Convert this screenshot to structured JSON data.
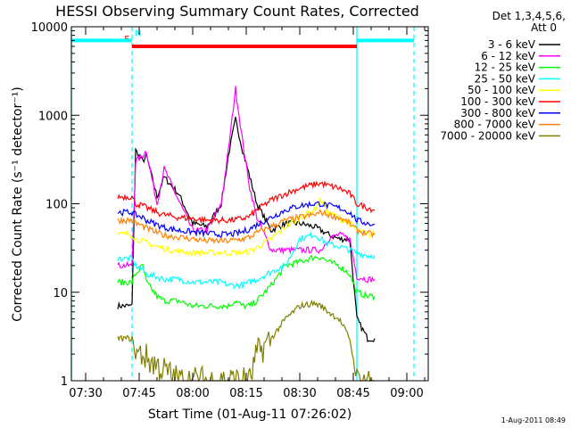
{
  "chart_data": {
    "type": "line",
    "title": "HESSI Observing Summary Count Rates, Corrected",
    "xlabel": "Start Time (01-Aug-11 07:26:02)",
    "ylabel": "Corrected Count Rate (s⁻¹ detector⁻¹)",
    "x_unit": "minutes since 07:26:02",
    "xlim": [
      0,
      100
    ],
    "x_ticks": [
      4,
      19,
      34,
      49,
      64,
      79,
      94
    ],
    "x_tick_labels": [
      "07:30",
      "07:45",
      "08:00",
      "08:15",
      "08:30",
      "08:45",
      "09:00"
    ],
    "y_scale": "log",
    "ylim": [
      1,
      10000
    ],
    "y_ticks": [
      1,
      10,
      100,
      1000,
      10000
    ],
    "y_tick_labels": [
      "1",
      "10",
      "100",
      "1000",
      "10000"
    ],
    "legend_header": [
      "Det 1,3,4,5,6,",
      "Att 0"
    ],
    "legend_position": "right",
    "footer": "1-Aug-2011 08:49",
    "flags": [
      {
        "label": "F",
        "color": "#ff0000",
        "value": 6000,
        "x_start": 17,
        "x_end": 80
      },
      {
        "label": "N",
        "color": "#00ffff",
        "value": 7000,
        "x_start": 0,
        "x_end": 17
      },
      {
        "label": "",
        "color": "#00ffff",
        "value": 7000,
        "x_start": 80,
        "x_end": 96
      }
    ],
    "vlines": [
      {
        "x": 0,
        "color": "#00ffff",
        "style": "solid"
      },
      {
        "x": 17,
        "color": "#00ffff",
        "style": "dashed"
      },
      {
        "x": 80,
        "color": "#00ffff",
        "style": "solid"
      },
      {
        "x": 96,
        "color": "#00ffff",
        "style": "dashed"
      }
    ],
    "x_samples": [
      13,
      17,
      18,
      20,
      21,
      24,
      26,
      30,
      34,
      38,
      42,
      44,
      46,
      48,
      50,
      52,
      56,
      60,
      64,
      68,
      70,
      72,
      75,
      78,
      80,
      83,
      85
    ],
    "series": [
      {
        "name": "3 - 6 keV",
        "color": "#000000",
        "values": [
          7,
          7,
          400,
          300,
          350,
          120,
          200,
          130,
          60,
          55,
          100,
          350,
          900,
          400,
          200,
          100,
          50,
          60,
          60,
          55,
          50,
          45,
          40,
          40,
          5,
          3,
          3
        ]
      },
      {
        "name": "6 - 12 keV",
        "color": "#ff00ff",
        "values": [
          20,
          20,
          300,
          350,
          400,
          100,
          250,
          110,
          50,
          50,
          100,
          400,
          2000,
          500,
          150,
          70,
          30,
          30,
          30,
          30,
          30,
          40,
          45,
          40,
          15,
          14,
          14
        ]
      },
      {
        "name": "12 - 25 keV",
        "color": "#00ff00",
        "values": [
          13,
          13,
          16,
          20,
          13,
          9,
          8,
          8,
          7,
          7,
          7,
          7,
          8,
          7,
          7,
          8,
          12,
          20,
          22,
          25,
          25,
          22,
          20,
          16,
          10,
          9,
          9
        ]
      },
      {
        "name": "25 - 50 keV",
        "color": "#00ffff",
        "values": [
          24,
          24,
          20,
          18,
          16,
          15,
          14,
          14,
          13,
          13,
          13,
          12,
          12,
          12,
          13,
          14,
          17,
          20,
          40,
          45,
          40,
          35,
          33,
          30,
          28,
          26,
          26
        ]
      },
      {
        "name": "50 - 100 keV",
        "color": "#ffff00",
        "values": [
          45,
          45,
          40,
          38,
          36,
          33,
          31,
          29,
          28,
          28,
          28,
          28,
          28,
          28,
          29,
          32,
          40,
          55,
          70,
          85,
          110,
          80,
          70,
          60,
          50,
          45,
          45
        ]
      },
      {
        "name": "100 - 300 keV",
        "color": "#ff0000",
        "values": [
          120,
          120,
          100,
          95,
          90,
          80,
          75,
          70,
          68,
          65,
          65,
          65,
          66,
          68,
          72,
          85,
          110,
          130,
          150,
          165,
          170,
          160,
          150,
          130,
          100,
          90,
          85
        ]
      },
      {
        "name": "300 - 800 keV",
        "color": "#0000ff",
        "values": [
          80,
          80,
          75,
          70,
          65,
          58,
          54,
          50,
          48,
          46,
          45,
          45,
          46,
          48,
          52,
          58,
          70,
          85,
          95,
          100,
          100,
          95,
          90,
          80,
          65,
          60,
          58
        ]
      },
      {
        "name": "800 - 7000 keV",
        "color": "#ff8000",
        "values": [
          65,
          65,
          60,
          56,
          53,
          47,
          44,
          42,
          40,
          38,
          38,
          38,
          39,
          40,
          42,
          47,
          55,
          65,
          70,
          75,
          80,
          75,
          70,
          60,
          50,
          46,
          45
        ]
      },
      {
        "name": "7000 - 20000 keV",
        "color": "#808000",
        "values": [
          3,
          3,
          2,
          2,
          1.8,
          1.5,
          1.3,
          1,
          1,
          1,
          1,
          1,
          1,
          1,
          1,
          2,
          3,
          5,
          7,
          7.5,
          7,
          6,
          5,
          3,
          1,
          1,
          1
        ]
      }
    ]
  }
}
